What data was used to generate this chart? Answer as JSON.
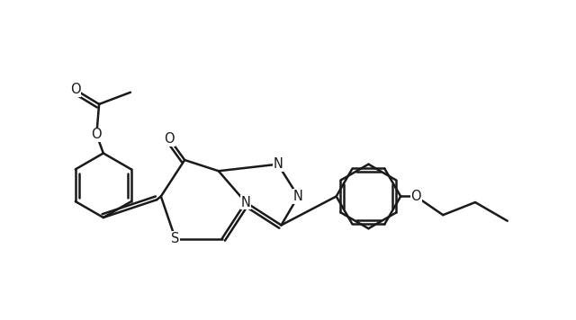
{
  "background_color": "#ffffff",
  "line_color": "#1a1a1a",
  "line_width": 1.8,
  "font_size": 10.5,
  "figsize": [
    6.4,
    3.56
  ],
  "dpi": 100,
  "xlim": [
    0.2,
    7.0
  ],
  "ylim": [
    0.3,
    3.8
  ]
}
